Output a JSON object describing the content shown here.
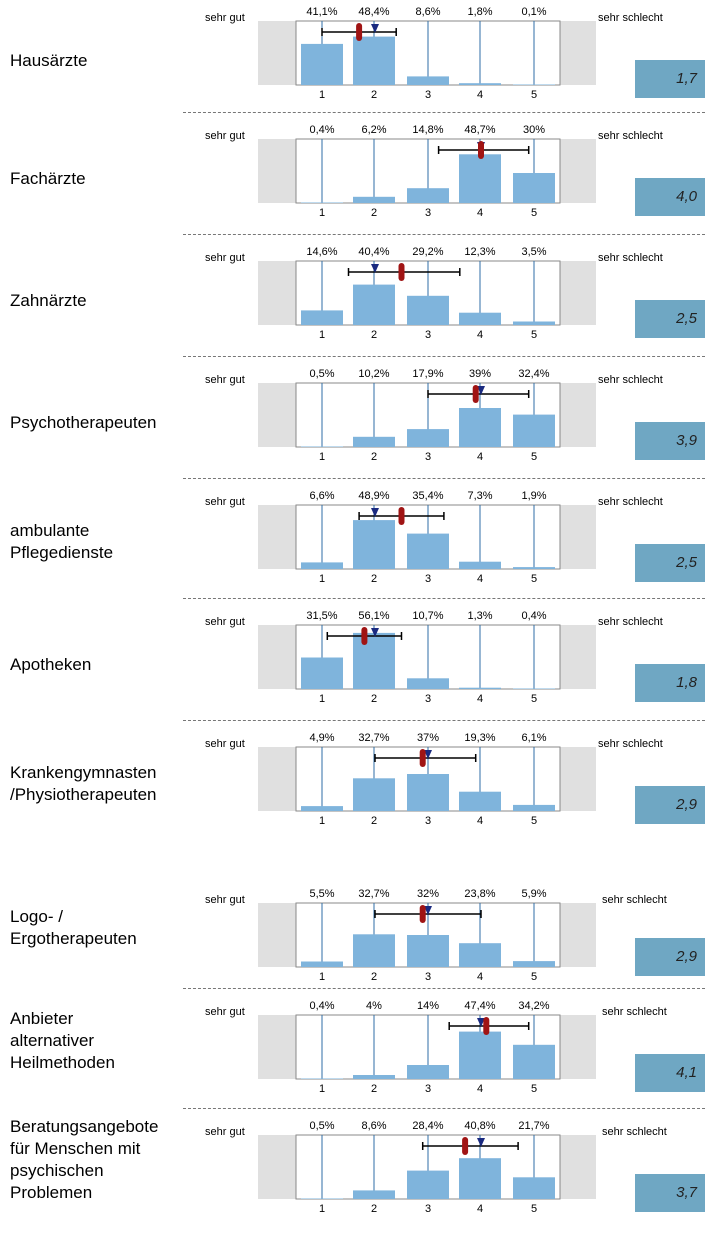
{
  "chart_data": {
    "type": "bar",
    "categories": [
      "1",
      "2",
      "3",
      "4",
      "5"
    ],
    "left_anchor": "sehr gut",
    "right_anchor": "sehr schlecht",
    "grid": true,
    "panels": [
      {
        "label": "Hausärzte",
        "percent_labels": [
          "41,1%",
          "48,4%",
          "8,6%",
          "1,8%",
          "0,1%"
        ],
        "values": [
          41.1,
          48.4,
          8.6,
          1.8,
          0.1
        ],
        "mean": 1.7,
        "mean_label": "1,7",
        "whisker": [
          1.0,
          2.4
        ],
        "median": 2.0
      },
      {
        "label": "Fachärzte",
        "percent_labels": [
          "0,4%",
          "6,2%",
          "14,8%",
          "48,7%",
          "30%"
        ],
        "values": [
          0.4,
          6.2,
          14.8,
          48.7,
          30
        ],
        "mean": 4.0,
        "mean_label": "4,0",
        "whisker": [
          3.2,
          4.9
        ],
        "median": 4.0
      },
      {
        "label": "Zahnärzte",
        "percent_labels": [
          "14,6%",
          "40,4%",
          "29,2%",
          "12,3%",
          "3,5%"
        ],
        "values": [
          14.6,
          40.4,
          29.2,
          12.3,
          3.5
        ],
        "mean": 2.5,
        "mean_label": "2,5",
        "whisker": [
          1.5,
          3.6
        ],
        "median": 2.0
      },
      {
        "label": "Psychotherapeuten",
        "percent_labels": [
          "0,5%",
          "10,2%",
          "17,9%",
          "39%",
          "32,4%"
        ],
        "values": [
          0.5,
          10.2,
          17.9,
          39,
          32.4
        ],
        "mean": 3.9,
        "mean_label": "3,9",
        "whisker": [
          3.0,
          4.9
        ],
        "median": 4.0
      },
      {
        "label": "ambulante\nPflegedienste",
        "percent_labels": [
          "6,6%",
          "48,9%",
          "35,4%",
          "7,3%",
          "1,9%"
        ],
        "values": [
          6.6,
          48.9,
          35.4,
          7.3,
          1.9
        ],
        "mean": 2.5,
        "mean_label": "2,5",
        "whisker": [
          1.7,
          3.3
        ],
        "median": 2.0
      },
      {
        "label": "Apotheken",
        "percent_labels": [
          "31,5%",
          "56,1%",
          "10,7%",
          "1,3%",
          "0,4%"
        ],
        "values": [
          31.5,
          56.1,
          10.7,
          1.3,
          0.4
        ],
        "mean": 1.8,
        "mean_label": "1,8",
        "whisker": [
          1.1,
          2.5
        ],
        "median": 2.0
      },
      {
        "label": "Krankengymnasten\n/Physiotherapeuten",
        "percent_labels": [
          "4,9%",
          "32,7%",
          "37%",
          "19,3%",
          "6,1%"
        ],
        "values": [
          4.9,
          32.7,
          37,
          19.3,
          6.1
        ],
        "mean": 2.9,
        "mean_label": "2,9",
        "whisker": [
          2.0,
          3.9
        ],
        "median": 3.0
      },
      {
        "label": "Logo- /\nErgotherapeuten",
        "percent_labels": [
          "5,5%",
          "32,7%",
          "32%",
          "23,8%",
          "5,9%"
        ],
        "values": [
          5.5,
          32.7,
          32,
          23.8,
          5.9
        ],
        "mean": 2.9,
        "mean_label": "2,9",
        "whisker": [
          2.0,
          4.0
        ],
        "median": 3.0
      },
      {
        "label": "Anbieter\nalternativer\nHeilmethoden",
        "percent_labels": [
          "0,4%",
          "4%",
          "14%",
          "47,4%",
          "34,2%"
        ],
        "values": [
          0.4,
          4,
          14,
          47.4,
          34.2
        ],
        "mean": 4.1,
        "mean_label": "4,1",
        "whisker": [
          3.4,
          4.9
        ],
        "median": 4.0
      },
      {
        "label": "Beratungsangebote\nfür Menschen mit\npsychischen\nProblemen",
        "percent_labels": [
          "0,5%",
          "8,6%",
          "28,4%",
          "40,8%",
          "21,7%"
        ],
        "values": [
          0.5,
          8.6,
          28.4,
          40.8,
          21.7
        ],
        "mean": 3.7,
        "mean_label": "3,7",
        "whisker": [
          2.9,
          4.7
        ],
        "median": 4.0
      }
    ]
  },
  "colors": {
    "bar": "#7fb4dc",
    "gridline": "#2f6ea7",
    "side_box": "#e0e0e0",
    "mean_marker": "#a01414",
    "median_marker": "#1a2a80",
    "mean_box": "#6fa7c3"
  }
}
